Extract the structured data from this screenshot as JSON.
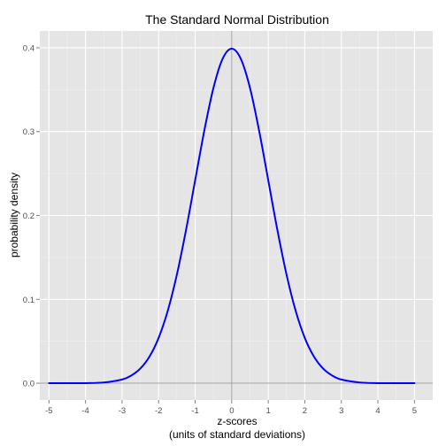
{
  "chart_data": {
    "type": "line",
    "title": "The Standard Normal Distribution",
    "xlabel_line1": "z-scores",
    "xlabel_line2": "(units of standard deviations)",
    "ylabel": "probability density",
    "xlim": [
      -5.25,
      5.5
    ],
    "ylim": [
      -0.02,
      0.42
    ],
    "x_ticks": [
      -5,
      -4,
      -3,
      -2,
      -1,
      0,
      1,
      2,
      3,
      4,
      5
    ],
    "x_tick_labels": [
      "-5",
      "-4",
      "-3",
      "-2",
      "-1",
      "0",
      "1",
      "2",
      "3",
      "4",
      "5"
    ],
    "y_ticks": [
      0.0,
      0.1,
      0.2,
      0.3,
      0.4
    ],
    "y_tick_labels": [
      "0.0",
      "0.1",
      "0.2",
      "0.3",
      "0.4"
    ],
    "reference_lines": {
      "x": 0,
      "y": 0
    },
    "grid": true,
    "line_color": "#0000ff",
    "reference_color": "#a0a0a0",
    "panel_color": "#e5e5e5",
    "series": [
      {
        "x": [
          -5,
          -4.5,
          -4,
          -3.5,
          -3,
          -2.75,
          -2.5,
          -2.25,
          -2,
          -1.75,
          -1.5,
          -1.25,
          -1,
          -0.75,
          -0.5,
          -0.25,
          0,
          0.25,
          0.5,
          0.75,
          1,
          1.25,
          1.5,
          1.75,
          2,
          2.25,
          2.5,
          2.75,
          3,
          3.5,
          4,
          4.5,
          5
        ],
        "y": [
          0.0,
          0.0,
          0.0001,
          0.0009,
          0.0044,
          0.0091,
          0.0175,
          0.0317,
          0.054,
          0.0863,
          0.1295,
          0.1826,
          0.242,
          0.3011,
          0.3521,
          0.3867,
          0.3989,
          0.3867,
          0.3521,
          0.3011,
          0.242,
          0.1826,
          0.1295,
          0.0863,
          0.054,
          0.0317,
          0.0175,
          0.0091,
          0.0044,
          0.0009,
          0.0001,
          0.0,
          0.0
        ]
      }
    ]
  }
}
